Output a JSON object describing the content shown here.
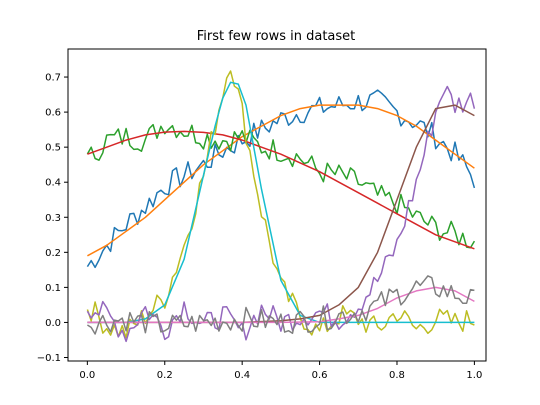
{
  "chart_data": {
    "type": "line",
    "title": "First few rows in dataset",
    "xlabel": "",
    "ylabel": "",
    "xlim": [
      -0.05,
      1.03
    ],
    "ylim": [
      -0.11,
      0.78
    ],
    "grid": false,
    "legend": "none",
    "xticks": [
      0.0,
      0.2,
      0.4,
      0.6,
      0.8,
      1.0
    ],
    "xtick_labels": [
      "0.0",
      "0.2",
      "0.4",
      "0.6",
      "0.8",
      "1.0"
    ],
    "yticks": [
      -0.1,
      0.0,
      0.1,
      0.2,
      0.3,
      0.4,
      0.5,
      0.6,
      0.7
    ],
    "ytick_labels": [
      "−0.1",
      "0.0",
      "0.1",
      "0.2",
      "0.3",
      "0.4",
      "0.5",
      "0.6",
      "0.7"
    ],
    "series": [
      {
        "color": "#1f77b4",
        "style": "noisy",
        "x": [
          0.0,
          0.05,
          0.1,
          0.15,
          0.2,
          0.25,
          0.3,
          0.35,
          0.4,
          0.45,
          0.5,
          0.55,
          0.6,
          0.65,
          0.7,
          0.75,
          0.8,
          0.85,
          0.9,
          0.95,
          1.0
        ],
        "y": [
          0.16,
          0.22,
          0.28,
          0.33,
          0.39,
          0.42,
          0.45,
          0.49,
          0.52,
          0.55,
          0.58,
          0.6,
          0.61,
          0.62,
          0.63,
          0.63,
          0.6,
          0.57,
          0.53,
          0.48,
          0.41
        ]
      },
      {
        "color": "#ff7f0e",
        "style": "smooth",
        "x": [
          0.0,
          0.05,
          0.1,
          0.15,
          0.2,
          0.25,
          0.3,
          0.35,
          0.4,
          0.45,
          0.5,
          0.55,
          0.6,
          0.65,
          0.7,
          0.75,
          0.8,
          0.85,
          0.9,
          0.95,
          1.0
        ],
        "y": [
          0.19,
          0.22,
          0.26,
          0.3,
          0.35,
          0.4,
          0.45,
          0.49,
          0.53,
          0.56,
          0.59,
          0.61,
          0.62,
          0.62,
          0.62,
          0.61,
          0.59,
          0.56,
          0.52,
          0.48,
          0.44
        ]
      },
      {
        "color": "#2ca02c",
        "style": "noisy",
        "x": [
          0.0,
          0.05,
          0.1,
          0.15,
          0.2,
          0.25,
          0.3,
          0.35,
          0.4,
          0.45,
          0.5,
          0.55,
          0.6,
          0.65,
          0.7,
          0.75,
          0.8,
          0.85,
          0.9,
          0.95,
          1.0
        ],
        "y": [
          0.46,
          0.52,
          0.53,
          0.52,
          0.57,
          0.55,
          0.53,
          0.52,
          0.53,
          0.5,
          0.49,
          0.47,
          0.43,
          0.42,
          0.4,
          0.36,
          0.34,
          0.3,
          0.27,
          0.25,
          0.23
        ]
      },
      {
        "color": "#d62728",
        "style": "smooth",
        "x": [
          0.0,
          0.05,
          0.1,
          0.15,
          0.2,
          0.25,
          0.3,
          0.35,
          0.4,
          0.45,
          0.5,
          0.55,
          0.6,
          0.65,
          0.7,
          0.75,
          0.8,
          0.85,
          0.9,
          0.95,
          1.0
        ],
        "y": [
          0.48,
          0.5,
          0.52,
          0.535,
          0.543,
          0.545,
          0.542,
          0.535,
          0.52,
          0.5,
          0.48,
          0.455,
          0.43,
          0.4,
          0.37,
          0.34,
          0.31,
          0.28,
          0.25,
          0.23,
          0.21
        ]
      },
      {
        "color": "#bcbd22",
        "style": "noisy",
        "x": [
          0.0,
          0.05,
          0.1,
          0.15,
          0.2,
          0.25,
          0.3,
          0.35,
          0.37,
          0.4,
          0.45,
          0.5,
          0.55,
          0.6,
          0.65,
          0.7,
          0.75,
          0.8,
          0.85,
          0.9,
          0.95,
          1.0
        ],
        "y": [
          0.05,
          -0.01,
          -0.03,
          0.02,
          0.07,
          0.22,
          0.42,
          0.66,
          0.75,
          0.6,
          0.32,
          0.1,
          0.02,
          -0.03,
          0.02,
          0.01,
          -0.02,
          0.03,
          -0.02,
          0.01,
          0.0,
          0.01
        ]
      },
      {
        "color": "#17becf",
        "style": "smooth",
        "x": [
          0.0,
          0.05,
          0.1,
          0.15,
          0.2,
          0.25,
          0.3,
          0.33,
          0.35,
          0.37,
          0.39,
          0.41,
          0.45,
          0.5,
          0.55,
          0.6,
          0.65,
          0.7,
          0.8,
          0.9,
          1.0
        ],
        "y": [
          0.0,
          0.0,
          0.0,
          0.01,
          0.05,
          0.18,
          0.42,
          0.56,
          0.64,
          0.685,
          0.68,
          0.62,
          0.38,
          0.12,
          0.02,
          0.0,
          0.0,
          0.0,
          0.0,
          0.0,
          0.0
        ]
      },
      {
        "color": "#9467bd",
        "style": "noisy",
        "x": [
          0.0,
          0.05,
          0.1,
          0.15,
          0.2,
          0.25,
          0.3,
          0.35,
          0.4,
          0.45,
          0.5,
          0.55,
          0.6,
          0.65,
          0.7,
          0.75,
          0.8,
          0.85,
          0.9,
          0.92,
          0.95,
          1.0
        ],
        "y": [
          0.05,
          0.02,
          -0.03,
          0.04,
          -0.02,
          0.05,
          -0.01,
          0.02,
          -0.03,
          0.04,
          0.0,
          0.02,
          0.03,
          0.01,
          0.05,
          0.12,
          0.22,
          0.4,
          0.6,
          0.67,
          0.62,
          0.64
        ]
      },
      {
        "color": "#8c564b",
        "style": "smooth",
        "x": [
          0.0,
          0.1,
          0.2,
          0.3,
          0.4,
          0.5,
          0.55,
          0.6,
          0.65,
          0.7,
          0.75,
          0.8,
          0.85,
          0.9,
          0.95,
          1.0
        ],
        "y": [
          0.0,
          0.0,
          0.0,
          0.0,
          0.0,
          0.005,
          0.01,
          0.02,
          0.05,
          0.1,
          0.2,
          0.35,
          0.5,
          0.61,
          0.62,
          0.59
        ]
      },
      {
        "color": "#e377c2",
        "style": "smooth",
        "x": [
          0.0,
          0.1,
          0.2,
          0.3,
          0.4,
          0.5,
          0.6,
          0.65,
          0.7,
          0.75,
          0.8,
          0.85,
          0.9,
          0.95,
          1.0
        ],
        "y": [
          0.0,
          0.0,
          0.0,
          0.0,
          0.0,
          0.0,
          0.002,
          0.01,
          0.02,
          0.04,
          0.07,
          0.09,
          0.1,
          0.09,
          0.06
        ]
      },
      {
        "color": "#7f7f7f",
        "style": "noisy",
        "x": [
          0.0,
          0.1,
          0.2,
          0.3,
          0.4,
          0.5,
          0.6,
          0.65,
          0.7,
          0.75,
          0.8,
          0.85,
          0.9,
          0.95,
          1.0
        ],
        "y": [
          0.0,
          0.01,
          -0.01,
          0.0,
          0.01,
          0.0,
          0.01,
          0.02,
          0.03,
          0.05,
          0.08,
          0.1,
          0.1,
          0.08,
          0.06
        ]
      }
    ]
  }
}
